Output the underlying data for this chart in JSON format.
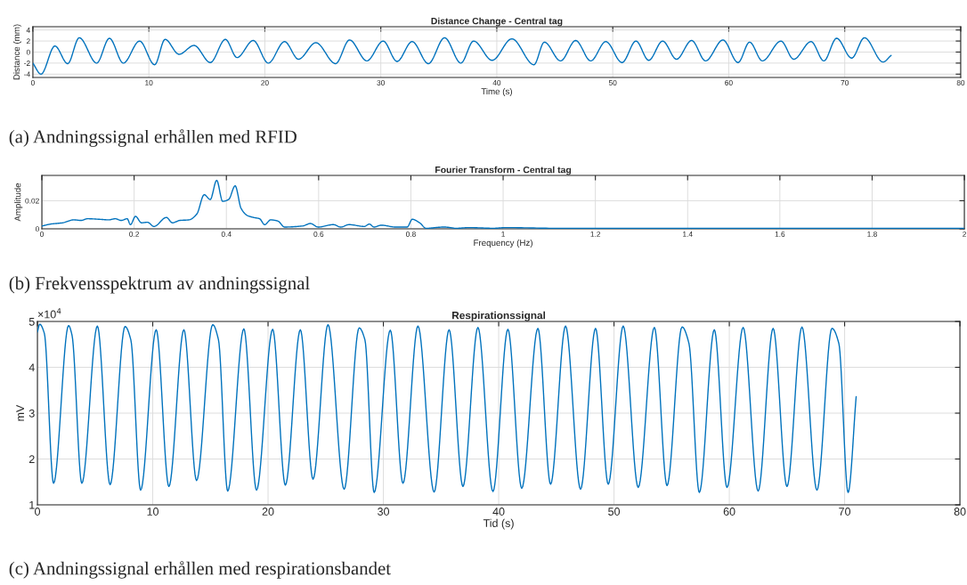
{
  "chart_data": [
    {
      "type": "line",
      "title": "Distance Change - Central tag",
      "xlabel": "Time (s)",
      "ylabel": "Distance (mm)",
      "xlim": [
        0,
        80
      ],
      "ylim": [
        -4.6,
        4.6
      ],
      "xticks": [
        0,
        10,
        20,
        30,
        40,
        50,
        60,
        70,
        80
      ],
      "yticks": [
        -4,
        -2,
        0,
        2,
        4
      ],
      "grid": true,
      "annotations": [
        "(a) Andningssignal erhållen med RFID"
      ],
      "series": [
        {
          "color": "#0072bd",
          "x": [
            0,
            0.7,
            1.9,
            3.0,
            4.0,
            5.5,
            6.6,
            7.8,
            9.2,
            10.5,
            11.4,
            12.6,
            13.9,
            15.3,
            16.6,
            17.6,
            19.0,
            20.3,
            21.7,
            22.9,
            24.4,
            26.1,
            27.3,
            28.8,
            30.2,
            31.4,
            32.7,
            34.1,
            35.5,
            36.9,
            38.0,
            39.6,
            41.3,
            43.2,
            44.1,
            45.5,
            46.8,
            48.1,
            49.4,
            50.8,
            52.0,
            53.1,
            54.3,
            55.5,
            56.8,
            58.0,
            59.5,
            60.8,
            61.8,
            62.9,
            64.5,
            65.6,
            67.1,
            68.2,
            69.3,
            70.6,
            71.7,
            73.3,
            74.0
          ],
          "values": [
            -2.0,
            -4.0,
            1.1,
            -2.1,
            2.6,
            -2.0,
            2.5,
            -2.0,
            2.0,
            -2.3,
            2.3,
            -0.4,
            1.2,
            -1.9,
            2.3,
            -1.0,
            2.1,
            -2.0,
            1.9,
            -1.3,
            1.7,
            -2.1,
            2.2,
            -1.6,
            2.0,
            -1.7,
            1.9,
            -2.1,
            2.6,
            -2.0,
            2.0,
            -1.5,
            2.4,
            -2.3,
            1.8,
            -1.6,
            2.1,
            -1.6,
            1.9,
            -1.9,
            2.0,
            -1.5,
            2.0,
            -1.3,
            2.1,
            -1.6,
            2.2,
            -1.9,
            1.8,
            -1.6,
            2.0,
            -1.3,
            1.9,
            -1.6,
            2.5,
            -1.1,
            2.6,
            -1.8,
            -0.6
          ]
        }
      ]
    },
    {
      "type": "line",
      "title": "Fourier Transform - Central tag",
      "xlabel": "Frequency (Hz)",
      "ylabel": "Amplitude",
      "xlim": [
        0,
        2
      ],
      "ylim": [
        0,
        0.038
      ],
      "xticks": [
        0,
        0.2,
        0.4,
        0.6,
        0.8,
        1,
        1.2,
        1.4,
        1.6,
        1.8,
        2
      ],
      "yticks": [
        0,
        0.02
      ],
      "grid": true,
      "annotations": [
        "(b) Frekvensspektrum av andningssignal"
      ],
      "series": [
        {
          "color": "#0072bd",
          "x": [
            0,
            0.019,
            0.045,
            0.069,
            0.085,
            0.099,
            0.125,
            0.145,
            0.159,
            0.172,
            0.185,
            0.192,
            0.203,
            0.216,
            0.229,
            0.243,
            0.27,
            0.283,
            0.299,
            0.319,
            0.336,
            0.352,
            0.365,
            0.379,
            0.392,
            0.405,
            0.419,
            0.432,
            0.446,
            0.459,
            0.472,
            0.483,
            0.496,
            0.512,
            0.526,
            0.566,
            0.582,
            0.599,
            0.632,
            0.648,
            0.666,
            0.699,
            0.71,
            0.72,
            0.736,
            0.766,
            0.792,
            0.803,
            0.819,
            0.833,
            0.872,
            0.899,
            0.926,
            0.979,
            1.006,
            1.113,
            1.246,
            1.513,
            2.0
          ],
          "values": [
            0.002,
            0.0034,
            0.0043,
            0.0064,
            0.006,
            0.0072,
            0.0068,
            0.0064,
            0.0072,
            0.006,
            0.0072,
            0.003,
            0.0089,
            0.0043,
            0.0047,
            0.0017,
            0.0081,
            0.0043,
            0.006,
            0.0064,
            0.0106,
            0.0243,
            0.0209,
            0.0345,
            0.0196,
            0.0209,
            0.0306,
            0.0145,
            0.0094,
            0.0081,
            0.0072,
            0.003,
            0.0064,
            0.0055,
            0.0013,
            0.0021,
            0.0038,
            0.0013,
            0.003,
            0.0013,
            0.003,
            0.0017,
            0.0034,
            0.0013,
            0.0026,
            0.0013,
            0.0013,
            0.0068,
            0.0043,
            0.0004,
            0.0013,
            0.0004,
            0.0009,
            0.0004,
            0.0009,
            0.0004,
            0.0004,
            0.0003,
            0.0003
          ]
        }
      ]
    },
    {
      "type": "line",
      "title": "Respirationssignal",
      "xlabel": "Tid (s)",
      "ylabel": "mV",
      "xlim": [
        0,
        80
      ],
      "ylim": [
        1,
        5
      ],
      "xticks": [
        0,
        10,
        20,
        30,
        40,
        50,
        60,
        70,
        80
      ],
      "yticks": [
        1,
        2,
        3,
        4,
        5
      ],
      "grid": true,
      "annotations": [
        "×10$^{4}$",
        "(c) Andningssignal erhållen med respirationsbandet"
      ],
      "series": [
        {
          "color": "#0072bd",
          "x": [
            0,
            0.2,
            0.6,
            1.4,
            2.7,
            3.0,
            3.85,
            5.2,
            6.3,
            7.6,
            8.1,
            8.95,
            10.3,
            11.4,
            12.7,
            13.8,
            15.2,
            15.7,
            16.5,
            17.9,
            19.0,
            20.4,
            21.5,
            22.8,
            23.9,
            25.2,
            26.6,
            27.9,
            28.4,
            29.2,
            30.6,
            31.7,
            33.0,
            34.4,
            35.7,
            36.9,
            38.2,
            39.5,
            40.8,
            42.0,
            43.4,
            44.5,
            45.8,
            47.1,
            48.4,
            49.5,
            50.8,
            52.1,
            53.5,
            54.6,
            55.9,
            56.5,
            57.4,
            58.7,
            59.8,
            61.2,
            62.5,
            63.8,
            65.0,
            66.3,
            67.6,
            68.9,
            69.5,
            70.3,
            71.0
          ],
          "values": [
            4.77,
            4.94,
            4.74,
            1.47,
            4.91,
            4.7,
            1.47,
            4.9,
            1.44,
            4.89,
            4.6,
            1.32,
            4.82,
            1.4,
            4.82,
            1.53,
            4.93,
            4.6,
            1.3,
            4.84,
            1.32,
            4.83,
            1.43,
            4.82,
            1.56,
            4.93,
            1.34,
            4.86,
            4.6,
            1.27,
            4.81,
            1.47,
            4.9,
            1.28,
            4.82,
            1.4,
            4.87,
            1.29,
            4.83,
            1.36,
            4.85,
            1.45,
            4.9,
            1.34,
            4.85,
            1.45,
            4.9,
            1.38,
            4.87,
            1.42,
            4.88,
            4.52,
            1.27,
            4.82,
            1.38,
            4.87,
            1.3,
            4.85,
            1.4,
            4.88,
            1.32,
            4.85,
            4.52,
            1.27,
            3.36
          ]
        }
      ]
    }
  ]
}
